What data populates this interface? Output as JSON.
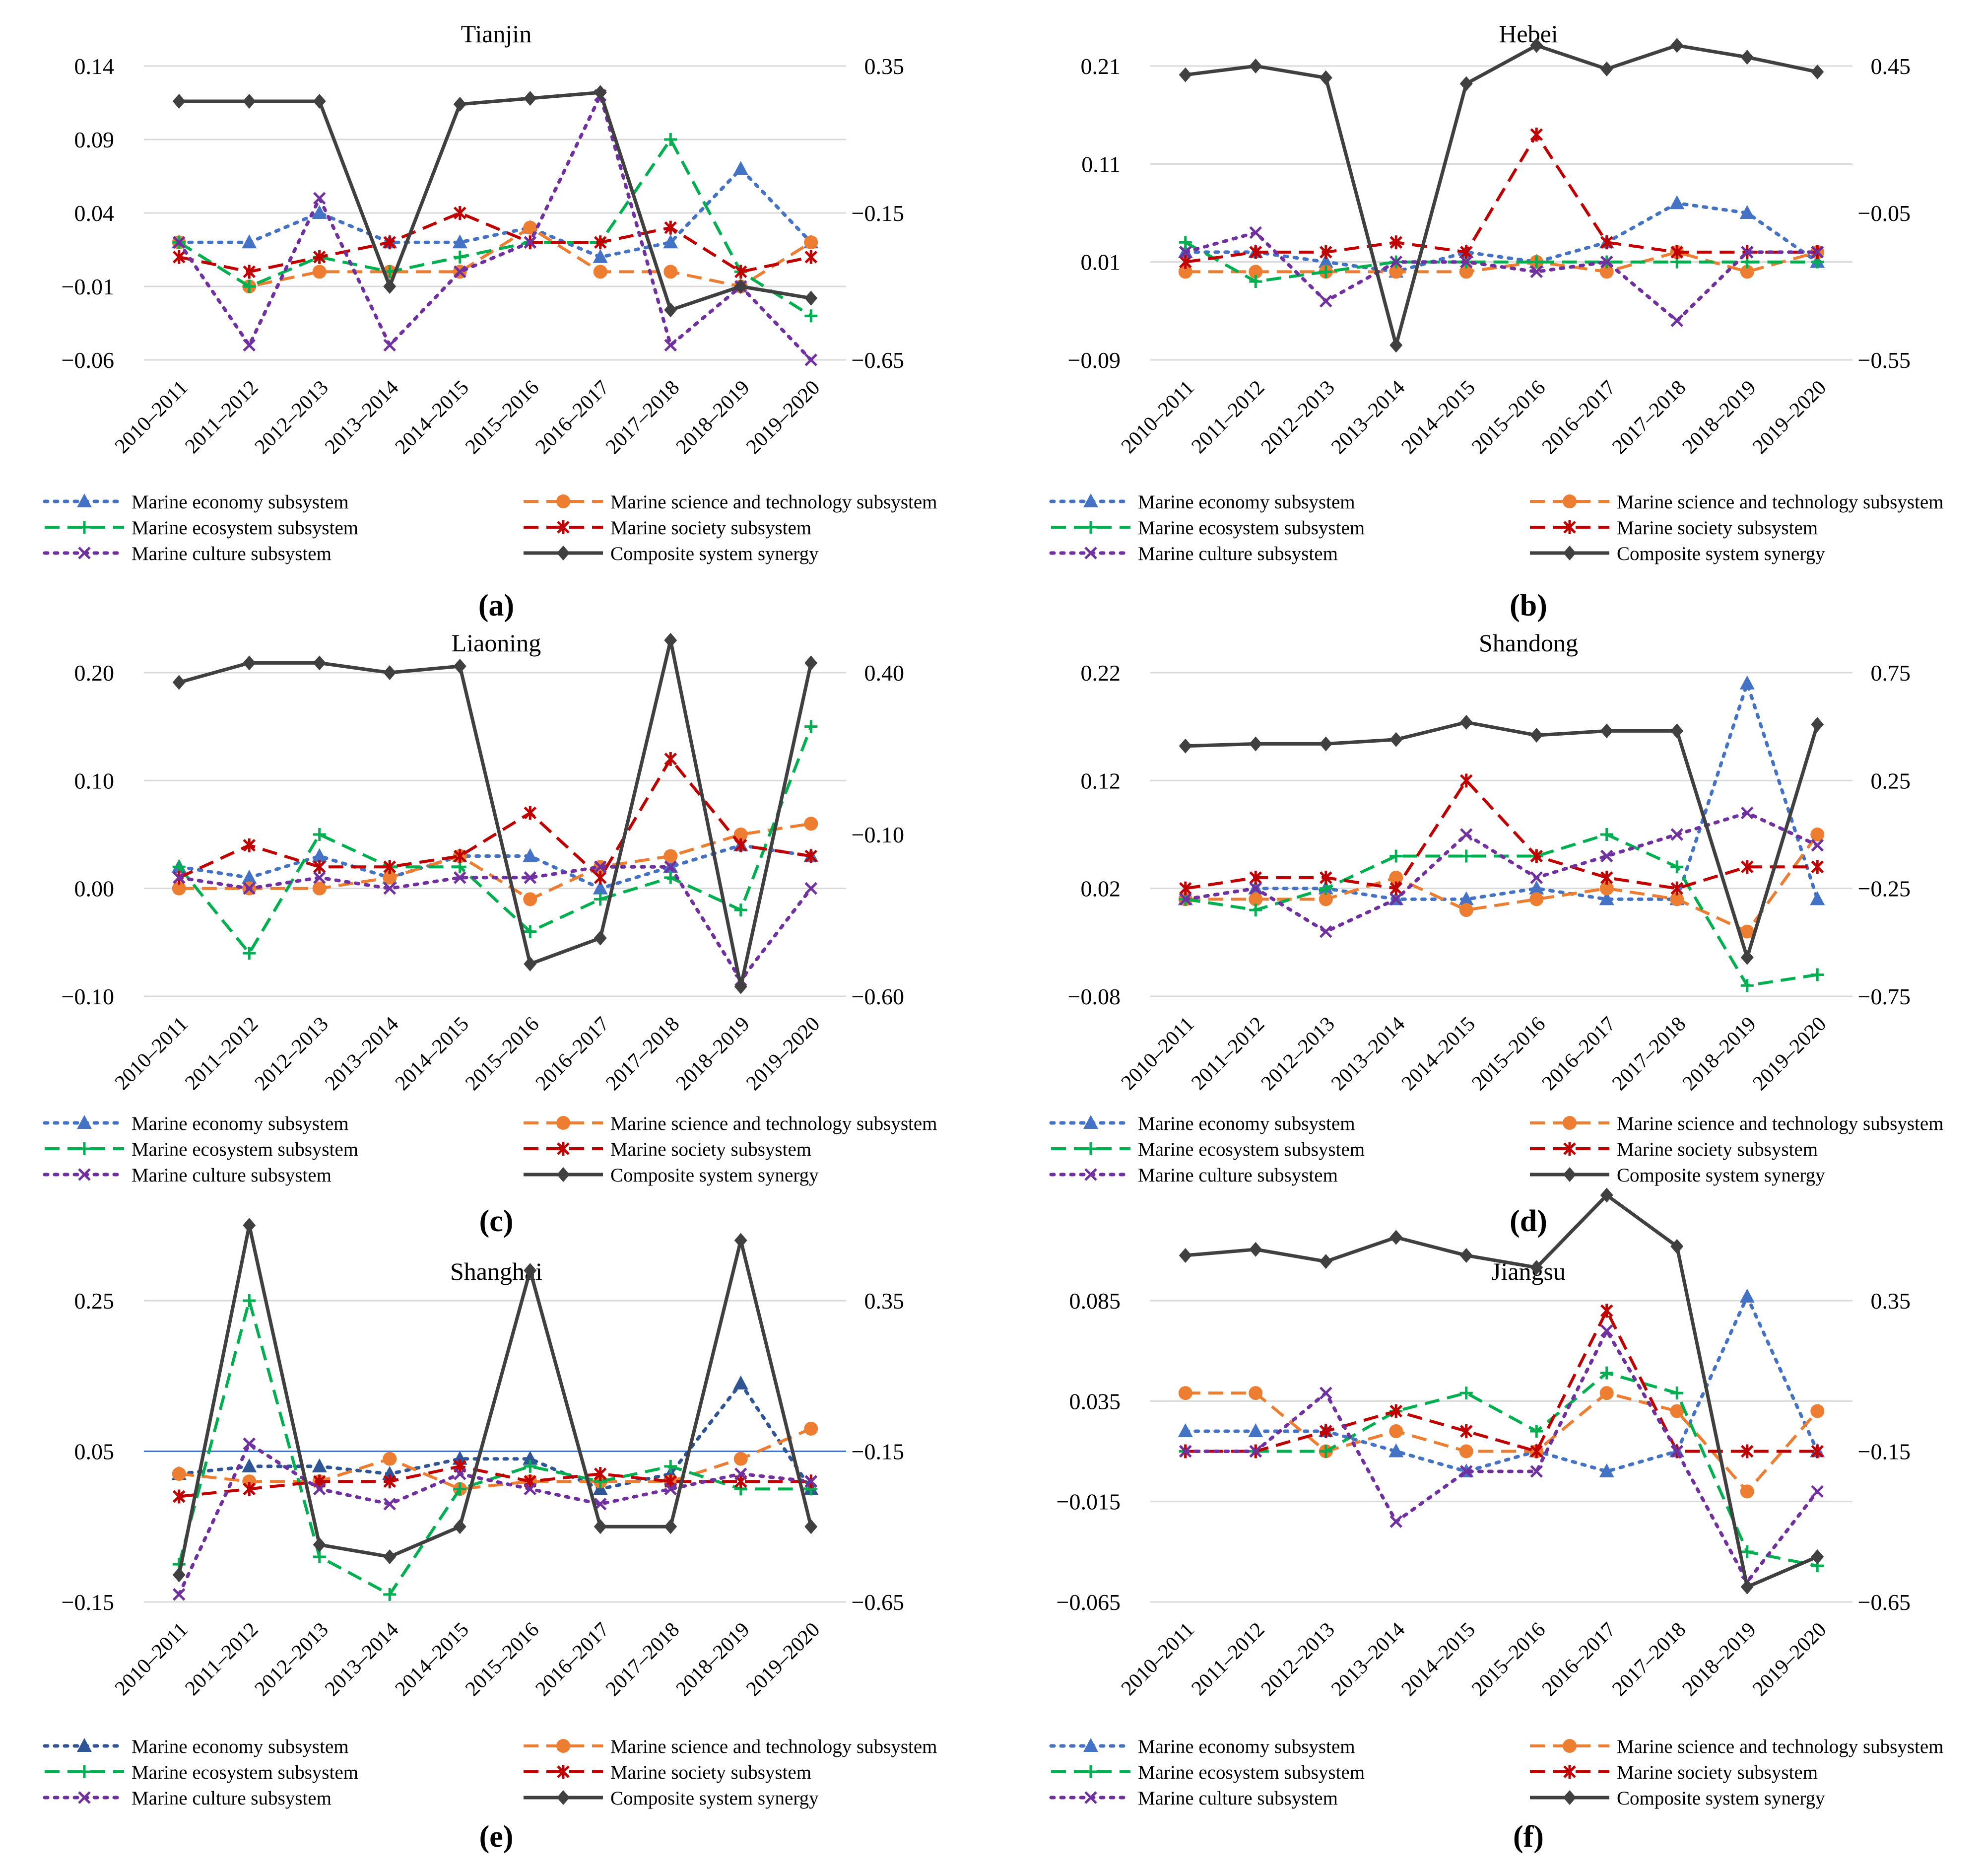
{
  "legend": {
    "economy": "Marine economy subsystem",
    "science": "Marine science and technology subsystem",
    "ecosystem": "Marine ecosystem subsystem",
    "society": "Marine society subsystem",
    "culture": "Marine culture subsystem",
    "composite": "Composite system synergy"
  },
  "colors": {
    "economy": "#4472c4",
    "science": "#ed7d31",
    "ecosystem": "#00b050",
    "society": "#c00000",
    "culture": "#7030a0",
    "composite": "#404040",
    "economy_dark": "#2f5597"
  },
  "chart_data": [
    {
      "type": "line",
      "panel_label": "(a)",
      "title": "Tianjin",
      "categories": [
        "2010–2011",
        "2011–2012",
        "2012–2013",
        "2013–2014",
        "2014–2015",
        "2015–2016",
        "2016–2017",
        "2017–2018",
        "2018–2019",
        "2019–2020"
      ],
      "left_ticks": [
        "0.14",
        "0.09",
        "0.04",
        "−0.01",
        "−0.06"
      ],
      "right_ticks": [
        "0.35",
        "−0.15",
        "−0.65"
      ],
      "ylim": [
        -0.06,
        0.14
      ],
      "ylim_right": [
        -0.65,
        0.35
      ],
      "series": [
        {
          "name": "Marine economy subsystem",
          "key": "economy",
          "axis": "left",
          "values": [
            0.02,
            0.02,
            0.04,
            0.02,
            0.02,
            0.03,
            0.01,
            0.02,
            0.07,
            0.02
          ]
        },
        {
          "name": "Marine science and technology subsystem",
          "key": "science",
          "axis": "left",
          "values": [
            0.02,
            -0.01,
            0.0,
            0.0,
            0.0,
            0.03,
            0.0,
            0.0,
            -0.01,
            0.02
          ]
        },
        {
          "name": "Marine ecosystem subsystem",
          "key": "ecosystem",
          "axis": "left",
          "values": [
            0.02,
            -0.01,
            0.01,
            0.0,
            0.01,
            0.02,
            0.02,
            0.09,
            0.0,
            -0.03
          ]
        },
        {
          "name": "Marine society subsystem",
          "key": "society",
          "axis": "left",
          "values": [
            0.01,
            0.0,
            0.01,
            0.02,
            0.04,
            0.02,
            0.02,
            0.03,
            0.0,
            0.01
          ]
        },
        {
          "name": "Marine culture subsystem",
          "key": "culture",
          "axis": "left",
          "values": [
            0.02,
            -0.05,
            0.05,
            -0.05,
            0.0,
            0.02,
            0.12,
            -0.05,
            -0.01,
            -0.06
          ]
        },
        {
          "name": "Composite system synergy",
          "key": "composite",
          "axis": "right",
          "values": [
            0.23,
            0.23,
            0.23,
            -0.4,
            0.22,
            0.24,
            0.26,
            -0.48,
            -0.4,
            -0.44
          ]
        }
      ]
    },
    {
      "type": "line",
      "panel_label": "(b)",
      "title": "Hebei",
      "categories": [
        "2010–2011",
        "2011–2012",
        "2012–2013",
        "2013–2014",
        "2014–2015",
        "2015–2016",
        "2016–2017",
        "2017–2018",
        "2018–2019",
        "2019–2020"
      ],
      "left_ticks": [
        "0.21",
        "0.11",
        "0.01",
        "−0.09"
      ],
      "right_ticks": [
        "0.45",
        "−0.05",
        "−0.55"
      ],
      "ylim": [
        -0.09,
        0.21
      ],
      "ylim_right": [
        -0.55,
        0.45
      ],
      "series": [
        {
          "name": "Marine economy subsystem",
          "key": "economy",
          "axis": "left",
          "values": [
            0.02,
            0.02,
            0.01,
            0.0,
            0.02,
            0.01,
            0.03,
            0.07,
            0.06,
            0.01
          ]
        },
        {
          "name": "Marine science and technology subsystem",
          "key": "science",
          "axis": "left",
          "values": [
            0.0,
            0.0,
            0.0,
            0.0,
            0.0,
            0.01,
            0.0,
            0.02,
            0.0,
            0.02
          ]
        },
        {
          "name": "Marine ecosystem subsystem",
          "key": "ecosystem",
          "axis": "left",
          "values": [
            0.03,
            -0.01,
            0.0,
            0.01,
            0.01,
            0.01,
            0.01,
            0.01,
            0.01,
            0.01
          ]
        },
        {
          "name": "Marine society subsystem",
          "key": "society",
          "axis": "left",
          "values": [
            0.01,
            0.02,
            0.02,
            0.03,
            0.02,
            0.14,
            0.03,
            0.02,
            0.02,
            0.02
          ]
        },
        {
          "name": "Marine culture subsystem",
          "key": "culture",
          "axis": "left",
          "values": [
            0.02,
            0.04,
            -0.03,
            0.01,
            0.01,
            0.0,
            0.01,
            -0.05,
            0.02,
            0.02
          ]
        },
        {
          "name": "Composite system synergy",
          "key": "composite",
          "axis": "right",
          "values": [
            0.42,
            0.45,
            0.41,
            -0.5,
            0.39,
            0.52,
            0.44,
            0.52,
            0.48,
            0.43
          ]
        }
      ]
    },
    {
      "type": "line",
      "panel_label": "(c)",
      "title": "Liaoning",
      "categories": [
        "2010–2011",
        "2011–2012",
        "2012–2013",
        "2013–2014",
        "2014–2015",
        "2015–2016",
        "2016–2017",
        "2017–2018",
        "2018–2019",
        "2019–2020"
      ],
      "left_ticks": [
        "0.20",
        "0.10",
        "0.00",
        "−0.10"
      ],
      "right_ticks": [
        "0.40",
        "−0.10",
        "−0.60"
      ],
      "ylim": [
        -0.1,
        0.2
      ],
      "ylim_right": [
        -0.6,
        0.4
      ],
      "series": [
        {
          "name": "Marine economy subsystem",
          "key": "economy",
          "axis": "left",
          "values": [
            0.02,
            0.01,
            0.03,
            0.01,
            0.03,
            0.03,
            0.0,
            0.02,
            0.04,
            0.03
          ]
        },
        {
          "name": "Marine science and technology subsystem",
          "key": "science",
          "axis": "left",
          "values": [
            0.0,
            0.0,
            0.0,
            0.01,
            0.03,
            -0.01,
            0.02,
            0.03,
            0.05,
            0.06
          ]
        },
        {
          "name": "Marine ecosystem subsystem",
          "key": "ecosystem",
          "axis": "left",
          "values": [
            0.02,
            -0.06,
            0.05,
            0.02,
            0.02,
            -0.04,
            -0.01,
            0.01,
            -0.02,
            0.15
          ]
        },
        {
          "name": "Marine society subsystem",
          "key": "society",
          "axis": "left",
          "values": [
            0.01,
            0.04,
            0.02,
            0.02,
            0.03,
            0.07,
            0.01,
            0.12,
            0.04,
            0.03
          ]
        },
        {
          "name": "Marine culture subsystem",
          "key": "culture",
          "axis": "left",
          "values": [
            0.01,
            0.0,
            0.01,
            0.0,
            0.01,
            0.01,
            0.02,
            0.02,
            -0.085,
            0.0
          ]
        },
        {
          "name": "Composite system synergy",
          "key": "composite",
          "axis": "right",
          "values": [
            0.37,
            0.43,
            0.43,
            0.4,
            0.42,
            -0.5,
            -0.42,
            0.5,
            -0.57,
            0.43
          ]
        }
      ]
    },
    {
      "type": "line",
      "panel_label": "(d)",
      "title": "Shandong",
      "categories": [
        "2010–2011",
        "2011–2012",
        "2012–2013",
        "2013–2014",
        "2014–2015",
        "2015–2016",
        "2016–2017",
        "2017–2018",
        "2018–2019",
        "2019–2020"
      ],
      "left_ticks": [
        "0.22",
        "0.12",
        "0.02",
        "−0.08"
      ],
      "right_ticks": [
        "0.75",
        "0.25",
        "−0.25",
        "−0.75"
      ],
      "ylim": [
        -0.08,
        0.22
      ],
      "ylim_right": [
        -0.75,
        0.75
      ],
      "series": [
        {
          "name": "Marine economy subsystem",
          "key": "economy",
          "axis": "left",
          "values": [
            0.01,
            0.02,
            0.02,
            0.01,
            0.01,
            0.02,
            0.01,
            0.01,
            0.21,
            0.01
          ]
        },
        {
          "name": "Marine science and technology subsystem",
          "key": "science",
          "axis": "left",
          "values": [
            0.01,
            0.01,
            0.01,
            0.03,
            0.0,
            0.01,
            0.02,
            0.01,
            -0.02,
            0.07
          ]
        },
        {
          "name": "Marine ecosystem subsystem",
          "key": "ecosystem",
          "axis": "left",
          "values": [
            0.01,
            0.0,
            0.02,
            0.05,
            0.05,
            0.05,
            0.07,
            0.04,
            -0.07,
            -0.06
          ]
        },
        {
          "name": "Marine society subsystem",
          "key": "society",
          "axis": "left",
          "values": [
            0.02,
            0.03,
            0.03,
            0.02,
            0.12,
            0.05,
            0.03,
            0.02,
            0.04,
            0.04
          ]
        },
        {
          "name": "Marine culture subsystem",
          "key": "culture",
          "axis": "left",
          "values": [
            0.01,
            0.02,
            -0.02,
            0.01,
            0.07,
            0.03,
            0.05,
            0.07,
            0.09,
            0.06
          ]
        },
        {
          "name": "Composite system synergy",
          "key": "composite",
          "axis": "right",
          "values": [
            0.41,
            0.42,
            0.42,
            0.44,
            0.52,
            0.46,
            0.48,
            0.48,
            -0.57,
            0.51
          ]
        }
      ]
    },
    {
      "type": "line",
      "panel_label": "(e)",
      "title": "Shanghai",
      "categories": [
        "2010–2011",
        "2011–2012",
        "2012–2013",
        "2013–2014",
        "2014–2015",
        "2015–2016",
        "2016–2017",
        "2017–2018",
        "2018–2019",
        "2019–2020"
      ],
      "left_ticks": [
        "0.25",
        "0.05",
        "−0.15"
      ],
      "right_ticks": [
        "0.35",
        "−0.15",
        "−0.65"
      ],
      "ylim": [
        -0.15,
        0.25
      ],
      "ylim_right": [
        -0.65,
        0.35
      ],
      "series": [
        {
          "name": "Marine economy subsystem",
          "key": "economy_dark",
          "axis": "left",
          "values": [
            0.02,
            0.03,
            0.03,
            0.02,
            0.04,
            0.04,
            0.0,
            0.02,
            0.14,
            0.0
          ]
        },
        {
          "name": "Marine science and technology subsystem",
          "key": "science",
          "axis": "left",
          "values": [
            0.02,
            0.01,
            0.01,
            0.04,
            0.0,
            0.01,
            0.01,
            0.01,
            0.04,
            0.08
          ]
        },
        {
          "name": "Marine ecosystem subsystem",
          "key": "ecosystem",
          "axis": "left",
          "values": [
            -0.1,
            0.25,
            -0.09,
            -0.14,
            0.0,
            0.03,
            0.01,
            0.03,
            0.0,
            0.0
          ]
        },
        {
          "name": "Marine society subsystem",
          "key": "society",
          "axis": "left",
          "values": [
            -0.01,
            0.0,
            0.01,
            0.01,
            0.03,
            0.01,
            0.02,
            0.01,
            0.01,
            0.01
          ]
        },
        {
          "name": "Marine culture subsystem",
          "key": "culture",
          "axis": "left",
          "values": [
            -0.14,
            0.06,
            0.0,
            -0.02,
            0.02,
            0.0,
            -0.02,
            0.0,
            0.02,
            0.01
          ]
        },
        {
          "name": "Composite system synergy",
          "key": "composite",
          "axis": "right",
          "values": [
            -0.56,
            0.6,
            -0.46,
            -0.5,
            -0.4,
            0.45,
            -0.4,
            -0.4,
            0.55,
            -0.4
          ]
        }
      ]
    },
    {
      "type": "line",
      "panel_label": "(f)",
      "title": "Jiangsu",
      "categories": [
        "2010–2011",
        "2011–2012",
        "2012–2013",
        "2013–2014",
        "2014–2015",
        "2015–2016",
        "2016–2017",
        "2017–2018",
        "2018–2019",
        "2019–2020"
      ],
      "left_ticks": [
        "0.085",
        "0.035",
        "−0.015",
        "−0.065"
      ],
      "right_ticks": [
        "0.35",
        "−0.15",
        "−0.65"
      ],
      "ylim": [
        -0.065,
        0.085
      ],
      "ylim_right": [
        -0.65,
        0.35
      ],
      "series": [
        {
          "name": "Marine economy subsystem",
          "key": "economy",
          "axis": "left",
          "values": [
            0.02,
            0.02,
            0.02,
            0.01,
            0.0,
            0.01,
            0.0,
            0.01,
            0.087,
            0.01
          ]
        },
        {
          "name": "Marine science and technology subsystem",
          "key": "science",
          "axis": "left",
          "values": [
            0.039,
            0.039,
            0.01,
            0.02,
            0.01,
            0.01,
            0.039,
            0.03,
            -0.01,
            0.03
          ]
        },
        {
          "name": "Marine ecosystem subsystem",
          "key": "ecosystem",
          "axis": "left",
          "values": [
            0.01,
            0.01,
            0.01,
            0.03,
            0.039,
            0.02,
            0.049,
            0.039,
            -0.04,
            -0.047
          ]
        },
        {
          "name": "Marine society subsystem",
          "key": "society",
          "axis": "left",
          "values": [
            0.01,
            0.01,
            0.02,
            0.03,
            0.02,
            0.01,
            0.08,
            0.01,
            0.01,
            0.01
          ]
        },
        {
          "name": "Marine culture subsystem",
          "key": "culture",
          "axis": "left",
          "values": [
            0.01,
            0.01,
            0.039,
            -0.025,
            0.0,
            0.0,
            0.07,
            0.01,
            -0.055,
            -0.01
          ]
        },
        {
          "name": "Composite system synergy",
          "key": "composite",
          "axis": "right",
          "values": [
            0.5,
            0.52,
            0.48,
            0.56,
            0.5,
            0.46,
            0.7,
            0.53,
            -0.6,
            -0.5
          ]
        }
      ]
    }
  ]
}
